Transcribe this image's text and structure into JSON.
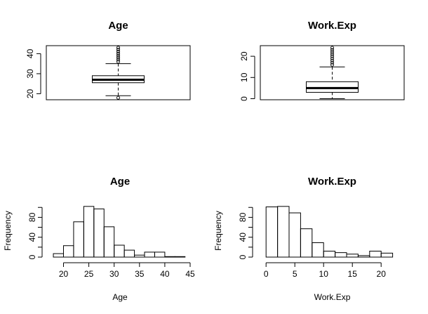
{
  "chart_data": [
    {
      "type": "boxplot",
      "title": "Age",
      "ylim": [
        17,
        44
      ],
      "yticks": [
        20,
        30,
        40
      ],
      "box": {
        "whisker_low": 19,
        "q1": 25.5,
        "median": 27,
        "q3": 29,
        "whisker_high": 35
      },
      "outliers_low": [
        18
      ],
      "outliers_high": [
        36,
        37,
        38,
        39,
        40,
        41,
        42,
        43
      ]
    },
    {
      "type": "boxplot",
      "title": "Work.Exp",
      "ylim": [
        -0.5,
        25
      ],
      "yticks": [
        0,
        10,
        20
      ],
      "box": {
        "whisker_low": 0,
        "q1": 3,
        "median": 5,
        "q3": 8,
        "whisker_high": 15
      },
      "outliers_low": [],
      "outliers_high": [
        16,
        17,
        18,
        19,
        20,
        21,
        22,
        23,
        24
      ]
    },
    {
      "type": "histogram",
      "title": "Age",
      "xlabel": "Age",
      "ylabel": "Frequency",
      "xlim": [
        17.3,
        45
      ],
      "xticks": [
        20,
        25,
        30,
        35,
        40,
        45
      ],
      "ylim": [
        0,
        106
      ],
      "yticks": [
        0,
        40,
        80
      ],
      "bins": [
        {
          "x0": 18,
          "x1": 20,
          "count": 7
        },
        {
          "x0": 20,
          "x1": 22,
          "count": 23
        },
        {
          "x0": 22,
          "x1": 24,
          "count": 71
        },
        {
          "x0": 24,
          "x1": 26,
          "count": 102
        },
        {
          "x0": 26,
          "x1": 28,
          "count": 97
        },
        {
          "x0": 28,
          "x1": 30,
          "count": 61
        },
        {
          "x0": 30,
          "x1": 32,
          "count": 24
        },
        {
          "x0": 32,
          "x1": 34,
          "count": 14
        },
        {
          "x0": 34,
          "x1": 36,
          "count": 4
        },
        {
          "x0": 36,
          "x1": 38,
          "count": 10
        },
        {
          "x0": 38,
          "x1": 40,
          "count": 10
        },
        {
          "x0": 40,
          "x1": 42,
          "count": 1
        },
        {
          "x0": 42,
          "x1": 44,
          "count": 1
        }
      ]
    },
    {
      "type": "histogram",
      "title": "Work.Exp",
      "xlabel": "Work.Exp",
      "ylabel": "Frequency",
      "xlim": [
        -1,
        24
      ],
      "xticks": [
        0,
        5,
        10,
        15,
        20
      ],
      "ylim": [
        0,
        106
      ],
      "yticks": [
        0,
        40,
        80
      ],
      "bins": [
        {
          "x0": 0,
          "x1": 2,
          "count": 101
        },
        {
          "x0": 2,
          "x1": 4,
          "count": 102
        },
        {
          "x0": 4,
          "x1": 6,
          "count": 89
        },
        {
          "x0": 6,
          "x1": 8,
          "count": 57
        },
        {
          "x0": 8,
          "x1": 10,
          "count": 29
        },
        {
          "x0": 10,
          "x1": 12,
          "count": 12
        },
        {
          "x0": 12,
          "x1": 14,
          "count": 9
        },
        {
          "x0": 14,
          "x1": 16,
          "count": 6
        },
        {
          "x0": 16,
          "x1": 18,
          "count": 3
        },
        {
          "x0": 18,
          "x1": 20,
          "count": 12
        },
        {
          "x0": 20,
          "x1": 22,
          "count": 8
        }
      ]
    }
  ]
}
